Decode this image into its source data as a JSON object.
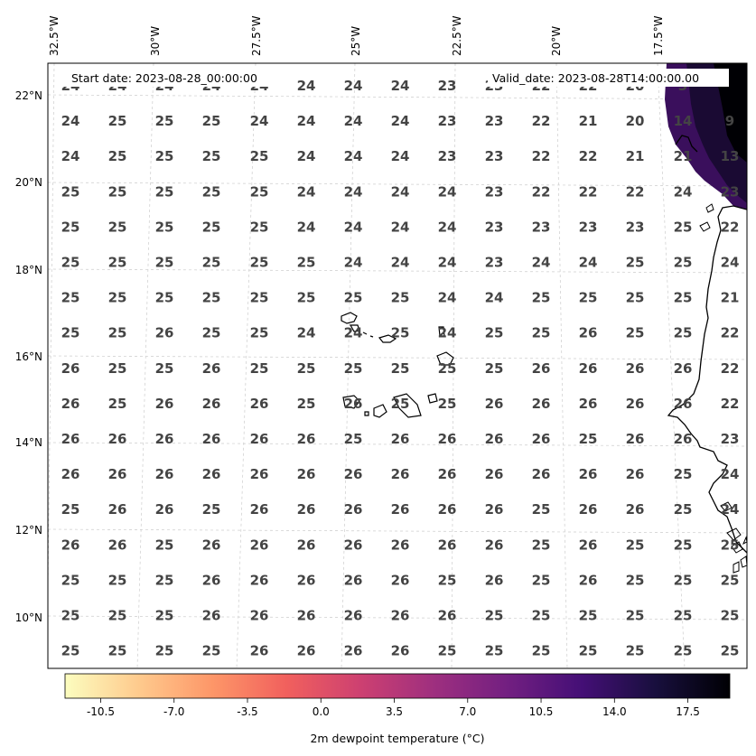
{
  "header": {
    "start_label": "Start date: 2023-08-28_00:00:00",
    "valid_label": "Valid_date: 2023-08-28T14:00:00.00"
  },
  "lon_labels": [
    "32.5°W",
    "30°W",
    "27.5°W",
    "25°W",
    "22.5°W",
    "20°W",
    "17.5°W"
  ],
  "lat_labels": [
    "22°N",
    "20°N",
    "18°N",
    "16°N",
    "14°N",
    "12°N",
    "10°N"
  ],
  "grid_values": [
    [
      "24",
      "24",
      "24",
      "24",
      "24",
      "24",
      "24",
      "24",
      "23",
      "23",
      "22",
      "22",
      "20",
      "3"
    ],
    [
      "24",
      "25",
      "25",
      "25",
      "24",
      "24",
      "24",
      "24",
      "23",
      "23",
      "22",
      "21",
      "20",
      "14",
      "9"
    ],
    [
      "24",
      "25",
      "25",
      "25",
      "25",
      "24",
      "24",
      "24",
      "23",
      "23",
      "22",
      "22",
      "21",
      "21",
      "13"
    ],
    [
      "25",
      "25",
      "25",
      "25",
      "25",
      "24",
      "24",
      "24",
      "24",
      "23",
      "22",
      "22",
      "22",
      "24",
      "23"
    ],
    [
      "25",
      "25",
      "25",
      "25",
      "25",
      "24",
      "24",
      "24",
      "24",
      "23",
      "23",
      "23",
      "23",
      "25",
      "22"
    ],
    [
      "25",
      "25",
      "25",
      "25",
      "25",
      "25",
      "24",
      "24",
      "24",
      "23",
      "24",
      "24",
      "25",
      "25",
      "24"
    ],
    [
      "25",
      "25",
      "25",
      "25",
      "25",
      "25",
      "25",
      "25",
      "24",
      "24",
      "25",
      "25",
      "25",
      "25",
      "21"
    ],
    [
      "25",
      "25",
      "26",
      "25",
      "25",
      "24",
      "24",
      "25",
      "24",
      "25",
      "25",
      "26",
      "25",
      "25",
      "22"
    ],
    [
      "26",
      "25",
      "25",
      "26",
      "25",
      "25",
      "25",
      "25",
      "25",
      "25",
      "26",
      "26",
      "26",
      "26",
      "22"
    ],
    [
      "26",
      "25",
      "26",
      "26",
      "26",
      "25",
      "26",
      "25",
      "25",
      "26",
      "26",
      "26",
      "26",
      "26",
      "22"
    ],
    [
      "26",
      "26",
      "26",
      "26",
      "26",
      "26",
      "25",
      "26",
      "26",
      "26",
      "26",
      "25",
      "26",
      "26",
      "23"
    ],
    [
      "26",
      "26",
      "26",
      "26",
      "26",
      "26",
      "26",
      "26",
      "26",
      "26",
      "26",
      "26",
      "26",
      "25",
      "24"
    ],
    [
      "25",
      "26",
      "26",
      "25",
      "26",
      "26",
      "26",
      "26",
      "26",
      "26",
      "25",
      "26",
      "26",
      "25",
      "24"
    ],
    [
      "26",
      "26",
      "25",
      "26",
      "26",
      "26",
      "26",
      "26",
      "26",
      "26",
      "25",
      "26",
      "25",
      "25",
      "25"
    ],
    [
      "25",
      "25",
      "25",
      "26",
      "26",
      "26",
      "26",
      "26",
      "25",
      "26",
      "25",
      "26",
      "25",
      "25",
      "25"
    ],
    [
      "25",
      "25",
      "25",
      "26",
      "26",
      "26",
      "26",
      "26",
      "26",
      "25",
      "25",
      "25",
      "25",
      "25",
      "25"
    ],
    [
      "25",
      "25",
      "25",
      "25",
      "26",
      "26",
      "26",
      "26",
      "25",
      "25",
      "25",
      "25",
      "25",
      "25",
      "25"
    ]
  ],
  "colorbar": {
    "ticks": [
      "-10.5",
      "-7.0",
      "-3.5",
      "0.0",
      "3.5",
      "7.0",
      "10.5",
      "14.0",
      "17.5"
    ],
    "title": "2m dewpoint temperature ($^\\circ$C)",
    "title_display": "2m dewpoint temperature (°C)",
    "colors": [
      "#fcfdbf",
      "#feca8d",
      "#fd9668",
      "#f1605d",
      "#cd4071",
      "#9e2f7f",
      "#721f81",
      "#440f76",
      "#180f3d",
      "#000004"
    ]
  },
  "colors": {
    "coast": "#000000",
    "grid_lines": "#cccccc",
    "value_text": "#444444",
    "land_warm": "#3a0f5c",
    "land_dark": "#000004"
  }
}
